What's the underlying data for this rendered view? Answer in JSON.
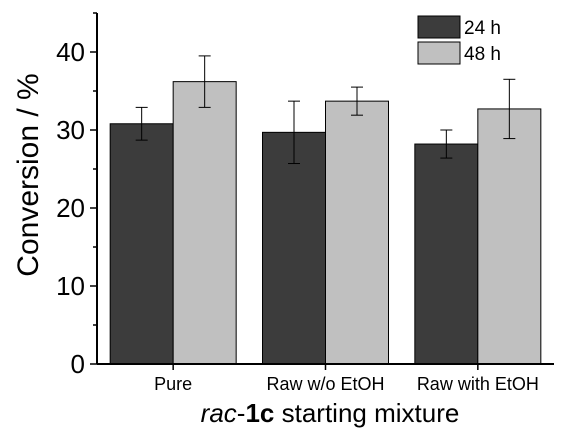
{
  "chart_data": {
    "type": "bar",
    "categories": [
      "Pure",
      "Raw w/o EtOH",
      "Raw with EtOH"
    ],
    "series": [
      {
        "name": "24 h",
        "color": "#3c3c3c",
        "values": [
          30.8,
          29.7,
          28.2
        ],
        "errors": [
          2.1,
          4.0,
          1.8
        ]
      },
      {
        "name": "48 h",
        "color": "#c0c0c0",
        "values": [
          36.2,
          33.7,
          32.7
        ],
        "errors": [
          3.3,
          1.8,
          3.8
        ]
      }
    ],
    "xlabel": {
      "prefix": "rac",
      "bold": "1c",
      "suffix": " starting mixture"
    },
    "ylabel": "Conversion / %",
    "ylim": [
      0,
      45
    ],
    "yticks": [
      0,
      10,
      20,
      30,
      40
    ],
    "grid": false,
    "legend_position": "top-right"
  }
}
